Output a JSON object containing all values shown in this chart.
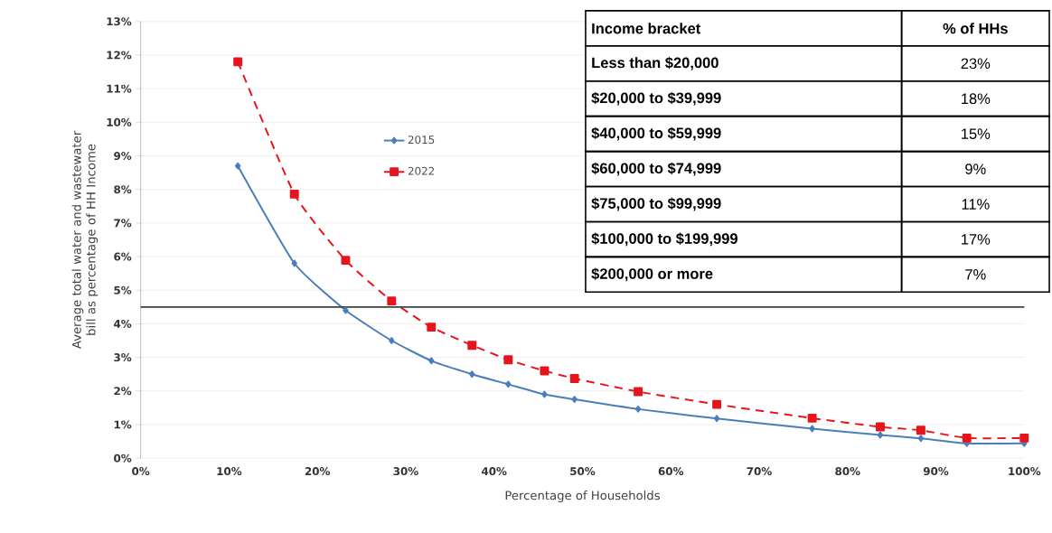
{
  "chart_data": {
    "type": "line",
    "xlabel": "Percentage of Households",
    "ylabel": "Average total water and wastewater bill as percentage of HH Income",
    "xlim": [
      0,
      100
    ],
    "ylim": [
      0,
      13
    ],
    "xticks": [
      {
        "value": 0,
        "label": "0%"
      },
      {
        "value": 10,
        "label": "10%"
      },
      {
        "value": 20,
        "label": "20%"
      },
      {
        "value": 30,
        "label": "30%"
      },
      {
        "value": 40,
        "label": "40%"
      },
      {
        "value": 50,
        "label": "50%"
      },
      {
        "value": 60,
        "label": "60%"
      },
      {
        "value": 70,
        "label": "70%"
      },
      {
        "value": 80,
        "label": "80%"
      },
      {
        "value": 90,
        "label": "90%"
      },
      {
        "value": 100,
        "label": "100%"
      }
    ],
    "yticks": [
      {
        "value": 0,
        "label": "0%"
      },
      {
        "value": 1,
        "label": "1%"
      },
      {
        "value": 2,
        "label": "2%"
      },
      {
        "value": 3,
        "label": "3%"
      },
      {
        "value": 4,
        "label": "4%"
      },
      {
        "value": 5,
        "label": "5%"
      },
      {
        "value": 6,
        "label": "6%"
      },
      {
        "value": 7,
        "label": "7%"
      },
      {
        "value": 8,
        "label": "8%"
      },
      {
        "value": 9,
        "label": "9%"
      },
      {
        "value": 10,
        "label": "10%"
      },
      {
        "value": 11,
        "label": "11%"
      },
      {
        "value": 12,
        "label": "12%"
      },
      {
        "value": 13,
        "label": "13%"
      }
    ],
    "grid": "y",
    "legend": "top left",
    "x": [
      11,
      17.4,
      23.2,
      28.4,
      32.9,
      37.5,
      41.6,
      45.7,
      49.1,
      56.3,
      65.2,
      76.0,
      83.7,
      88.3,
      93.5,
      100
    ],
    "series": [
      {
        "name": "2015",
        "color": "#4a7ebb",
        "marker": "diamond",
        "line_style": "solid",
        "values": [
          8.7,
          5.8,
          4.4,
          3.5,
          2.9,
          2.5,
          2.2,
          1.9,
          1.75,
          1.46,
          1.18,
          0.88,
          0.69,
          0.59,
          0.44,
          0.44
        ]
      },
      {
        "name": "2022",
        "color": "#e8141c",
        "marker": "square",
        "line_style": "dashed",
        "values": [
          11.8,
          7.86,
          5.89,
          4.68,
          3.9,
          3.36,
          2.93,
          2.6,
          2.37,
          1.98,
          1.6,
          1.19,
          0.93,
          0.83,
          0.6,
          0.6
        ]
      }
    ],
    "ref_lines": [
      {
        "axis": "y",
        "value": 4.5,
        "color": "#404040",
        "line_style": "solid"
      }
    ],
    "annotations": [
      "Income bracket",
      "% of HHs",
      "Less than $20,000",
      "23%",
      "$20,000 to $39,999",
      "18%",
      "$40,000 to $59,999",
      "15%",
      "$60,000 to $74,999",
      "9%",
      "$75,000 to $99,999",
      "11%",
      "$100,000 to $199,999",
      "17%",
      "$200,000 or more",
      "7%"
    ]
  }
}
